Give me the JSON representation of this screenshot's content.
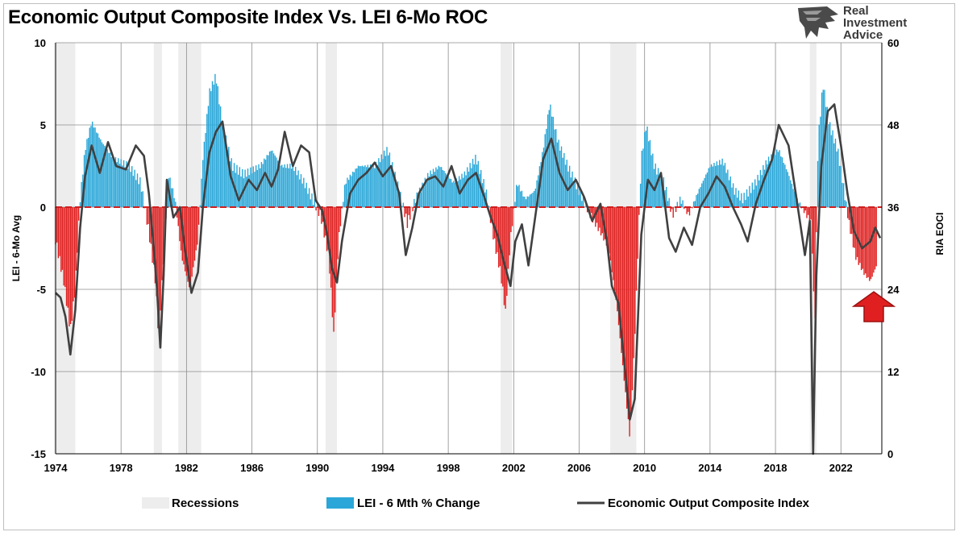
{
  "chart_data": {
    "type": "bar+line",
    "title": "Economic Output Composite Index Vs. LEI 6-Mo ROC",
    "y_left": {
      "label": "LEI - 6-Mo Avg",
      "ylim": [
        -15,
        10
      ],
      "ticks": [
        10,
        5,
        0,
        -5,
        -10,
        -15
      ]
    },
    "y_right": {
      "label": "RIA EOCI",
      "ylim": [
        0,
        60
      ],
      "ticks": [
        60,
        48,
        36,
        24,
        12,
        0
      ]
    },
    "x": {
      "xlim": [
        1974,
        2024.5
      ],
      "ticks": [
        1974,
        1978,
        1982,
        1986,
        1990,
        1994,
        1998,
        2002,
        2006,
        2010,
        2014,
        2018,
        2022
      ]
    },
    "grid": true,
    "legend_position": "bottom",
    "legend": [
      "Recessions",
      "LEI - 6 Mth % Change",
      "Economic Output Composite Index"
    ],
    "colors": {
      "recession": "#ededed",
      "lei_positive": "#2aa7d8",
      "lei_negative": "#e02020",
      "eoci": "#404040",
      "zero_line": "#d11f1f",
      "arrow": "#e02020"
    },
    "recessions": [
      [
        1973.9,
        1975.2
      ],
      [
        1980.0,
        1980.5
      ],
      [
        1981.5,
        1982.9
      ],
      [
        1990.5,
        1991.2
      ],
      [
        2001.2,
        2001.9
      ],
      [
        2007.9,
        2009.5
      ],
      [
        2020.1,
        2020.5
      ]
    ],
    "lei_series": {
      "name": "LEI - 6 Mth % Change",
      "points": [
        [
          1974.0,
          -2.0
        ],
        [
          1974.5,
          -4.5
        ],
        [
          1974.9,
          -7.5
        ],
        [
          1975.2,
          -5.0
        ],
        [
          1975.5,
          0.5
        ],
        [
          1975.8,
          3.5
        ],
        [
          1976.2,
          5.2
        ],
        [
          1976.8,
          4.0
        ],
        [
          1977.5,
          3.0
        ],
        [
          1978.5,
          2.5
        ],
        [
          1979.2,
          1.5
        ],
        [
          1979.7,
          -1.5
        ],
        [
          1980.1,
          -4.5
        ],
        [
          1980.3,
          -8.0
        ],
        [
          1980.6,
          -3.0
        ],
        [
          1980.9,
          2.0
        ],
        [
          1981.3,
          0.5
        ],
        [
          1981.7,
          -3.0
        ],
        [
          1982.2,
          -5.0
        ],
        [
          1982.7,
          -2.0
        ],
        [
          1983.0,
          3.0
        ],
        [
          1983.4,
          7.0
        ],
        [
          1983.8,
          8.0
        ],
        [
          1984.2,
          5.0
        ],
        [
          1984.8,
          2.5
        ],
        [
          1985.5,
          2.0
        ],
        [
          1986.5,
          2.5
        ],
        [
          1987.2,
          3.5
        ],
        [
          1987.8,
          2.5
        ],
        [
          1988.5,
          2.5
        ],
        [
          1989.2,
          1.5
        ],
        [
          1989.8,
          0.3
        ],
        [
          1990.2,
          -0.5
        ],
        [
          1990.7,
          -3.0
        ],
        [
          1991.0,
          -7.8
        ],
        [
          1991.3,
          -2.0
        ],
        [
          1991.7,
          1.5
        ],
        [
          1992.5,
          2.5
        ],
        [
          1993.5,
          2.5
        ],
        [
          1994.3,
          3.5
        ],
        [
          1995.0,
          1.0
        ],
        [
          1995.5,
          -1.0
        ],
        [
          1996.0,
          0.5
        ],
        [
          1996.8,
          2.0
        ],
        [
          1997.5,
          2.5
        ],
        [
          1998.3,
          1.5
        ],
        [
          1999.0,
          2.0
        ],
        [
          1999.7,
          3.0
        ],
        [
          2000.3,
          1.0
        ],
        [
          2000.8,
          -2.0
        ],
        [
          2001.2,
          -4.0
        ],
        [
          2001.5,
          -6.4
        ],
        [
          2001.8,
          -2.0
        ],
        [
          2002.2,
          1.5
        ],
        [
          2002.7,
          0.5
        ],
        [
          2003.3,
          1.0
        ],
        [
          2003.8,
          3.5
        ],
        [
          2004.2,
          6.3
        ],
        [
          2004.7,
          4.0
        ],
        [
          2005.3,
          2.5
        ],
        [
          2006.0,
          1.0
        ],
        [
          2006.7,
          -0.5
        ],
        [
          2007.3,
          -1.5
        ],
        [
          2007.8,
          -2.5
        ],
        [
          2008.3,
          -6.0
        ],
        [
          2008.8,
          -11.0
        ],
        [
          2009.1,
          -14.0
        ],
        [
          2009.4,
          -8.0
        ],
        [
          2009.8,
          3.0
        ],
        [
          2010.1,
          5.0
        ],
        [
          2010.6,
          2.5
        ],
        [
          2011.2,
          1.5
        ],
        [
          2011.7,
          -0.5
        ],
        [
          2012.2,
          0.5
        ],
        [
          2012.7,
          -0.5
        ],
        [
          2013.3,
          1.0
        ],
        [
          2014.0,
          2.5
        ],
        [
          2014.8,
          2.8
        ],
        [
          2015.5,
          1.0
        ],
        [
          2016.0,
          0.5
        ],
        [
          2016.8,
          1.5
        ],
        [
          2017.5,
          2.8
        ],
        [
          2018.2,
          3.5
        ],
        [
          2018.8,
          2.0
        ],
        [
          2019.3,
          0.5
        ],
        [
          2019.8,
          -0.3
        ],
        [
          2020.2,
          -1.0
        ],
        [
          2020.4,
          -7.5
        ],
        [
          2020.6,
          4.0
        ],
        [
          2020.9,
          7.5
        ],
        [
          2021.3,
          5.0
        ],
        [
          2021.8,
          3.5
        ],
        [
          2022.2,
          1.0
        ],
        [
          2022.5,
          -1.0
        ],
        [
          2022.9,
          -3.0
        ],
        [
          2023.4,
          -4.0
        ],
        [
          2023.8,
          -4.5
        ],
        [
          2024.2,
          -3.5
        ]
      ]
    },
    "eoci_series": {
      "name": "Economic Output Composite Index",
      "points": [
        [
          1974.0,
          23.5
        ],
        [
          1974.3,
          22.8
        ],
        [
          1974.6,
          20.0
        ],
        [
          1974.9,
          14.5
        ],
        [
          1975.2,
          21.0
        ],
        [
          1975.5,
          33.0
        ],
        [
          1975.8,
          40.5
        ],
        [
          1976.2,
          45.0
        ],
        [
          1976.7,
          41.0
        ],
        [
          1977.2,
          45.5
        ],
        [
          1977.7,
          42.0
        ],
        [
          1978.3,
          41.5
        ],
        [
          1978.9,
          45.0
        ],
        [
          1979.4,
          43.5
        ],
        [
          1979.7,
          38.0
        ],
        [
          1980.0,
          30.0
        ],
        [
          1980.2,
          24.0
        ],
        [
          1980.4,
          15.5
        ],
        [
          1980.6,
          26.0
        ],
        [
          1980.8,
          40.0
        ],
        [
          1981.2,
          34.5
        ],
        [
          1981.6,
          36.0
        ],
        [
          1981.9,
          30.0
        ],
        [
          1982.3,
          23.5
        ],
        [
          1982.7,
          26.5
        ],
        [
          1983.0,
          36.0
        ],
        [
          1983.4,
          44.0
        ],
        [
          1983.8,
          47.0
        ],
        [
          1984.2,
          48.5
        ],
        [
          1984.7,
          40.5
        ],
        [
          1985.2,
          37.0
        ],
        [
          1985.8,
          40.0
        ],
        [
          1986.3,
          38.5
        ],
        [
          1986.8,
          41.0
        ],
        [
          1987.2,
          39.0
        ],
        [
          1987.6,
          41.5
        ],
        [
          1988.0,
          47.0
        ],
        [
          1988.5,
          42.0
        ],
        [
          1989.0,
          45.0
        ],
        [
          1989.5,
          44.0
        ],
        [
          1989.9,
          37.0
        ],
        [
          1990.3,
          35.5
        ],
        [
          1990.6,
          32.0
        ],
        [
          1990.9,
          27.0
        ],
        [
          1991.2,
          25.0
        ],
        [
          1991.5,
          31.0
        ],
        [
          1992.0,
          38.0
        ],
        [
          1992.5,
          40.0
        ],
        [
          1993.0,
          41.0
        ],
        [
          1993.5,
          42.5
        ],
        [
          1994.0,
          40.5
        ],
        [
          1994.5,
          42.0
        ],
        [
          1995.0,
          38.0
        ],
        [
          1995.4,
          29.0
        ],
        [
          1995.8,
          33.0
        ],
        [
          1996.2,
          38.0
        ],
        [
          1996.7,
          40.0
        ],
        [
          1997.2,
          40.5
        ],
        [
          1997.7,
          39.0
        ],
        [
          1998.2,
          42.0
        ],
        [
          1998.7,
          38.0
        ],
        [
          1999.2,
          40.0
        ],
        [
          1999.7,
          41.0
        ],
        [
          2000.2,
          37.5
        ],
        [
          2000.6,
          34.5
        ],
        [
          2001.0,
          32.0
        ],
        [
          2001.4,
          28.0
        ],
        [
          2001.8,
          24.5
        ],
        [
          2002.1,
          31.0
        ],
        [
          2002.5,
          33.5
        ],
        [
          2002.9,
          27.5
        ],
        [
          2003.4,
          36.0
        ],
        [
          2003.8,
          43.0
        ],
        [
          2004.3,
          46.0
        ],
        [
          2004.8,
          41.0
        ],
        [
          2005.3,
          38.5
        ],
        [
          2005.8,
          40.0
        ],
        [
          2006.3,
          37.5
        ],
        [
          2006.8,
          34.0
        ],
        [
          2007.3,
          36.5
        ],
        [
          2007.7,
          31.0
        ],
        [
          2008.0,
          24.5
        ],
        [
          2008.4,
          22.0
        ],
        [
          2008.8,
          12.5
        ],
        [
          2009.1,
          5.0
        ],
        [
          2009.4,
          8.0
        ],
        [
          2009.8,
          32.0
        ],
        [
          2010.2,
          40.0
        ],
        [
          2010.6,
          38.5
        ],
        [
          2011.0,
          41.0
        ],
        [
          2011.5,
          31.5
        ],
        [
          2011.9,
          29.5
        ],
        [
          2012.4,
          33.0
        ],
        [
          2012.9,
          30.5
        ],
        [
          2013.4,
          36.0
        ],
        [
          2013.9,
          38.0
        ],
        [
          2014.4,
          40.5
        ],
        [
          2014.9,
          39.0
        ],
        [
          2015.4,
          36.0
        ],
        [
          2015.9,
          33.5
        ],
        [
          2016.3,
          31.0
        ],
        [
          2016.8,
          36.5
        ],
        [
          2017.3,
          40.0
        ],
        [
          2017.8,
          43.0
        ],
        [
          2018.2,
          48.0
        ],
        [
          2018.8,
          45.0
        ],
        [
          2019.3,
          37.0
        ],
        [
          2019.8,
          29.0
        ],
        [
          2020.1,
          34.0
        ],
        [
          2020.3,
          0.0
        ],
        [
          2020.5,
          26.0
        ],
        [
          2020.8,
          42.0
        ],
        [
          2021.2,
          50.0
        ],
        [
          2021.6,
          51.0
        ],
        [
          2022.0,
          45.0
        ],
        [
          2022.4,
          38.0
        ],
        [
          2022.8,
          32.5
        ],
        [
          2023.3,
          30.0
        ],
        [
          2023.8,
          31.0
        ],
        [
          2024.1,
          33.0
        ],
        [
          2024.4,
          31.5
        ]
      ]
    }
  },
  "logo": {
    "line1": "Real",
    "line2": "Investment",
    "line3": "Advice",
    "icon": "eagle-head-icon"
  },
  "annotation": {
    "icon": "up-arrow-icon"
  }
}
